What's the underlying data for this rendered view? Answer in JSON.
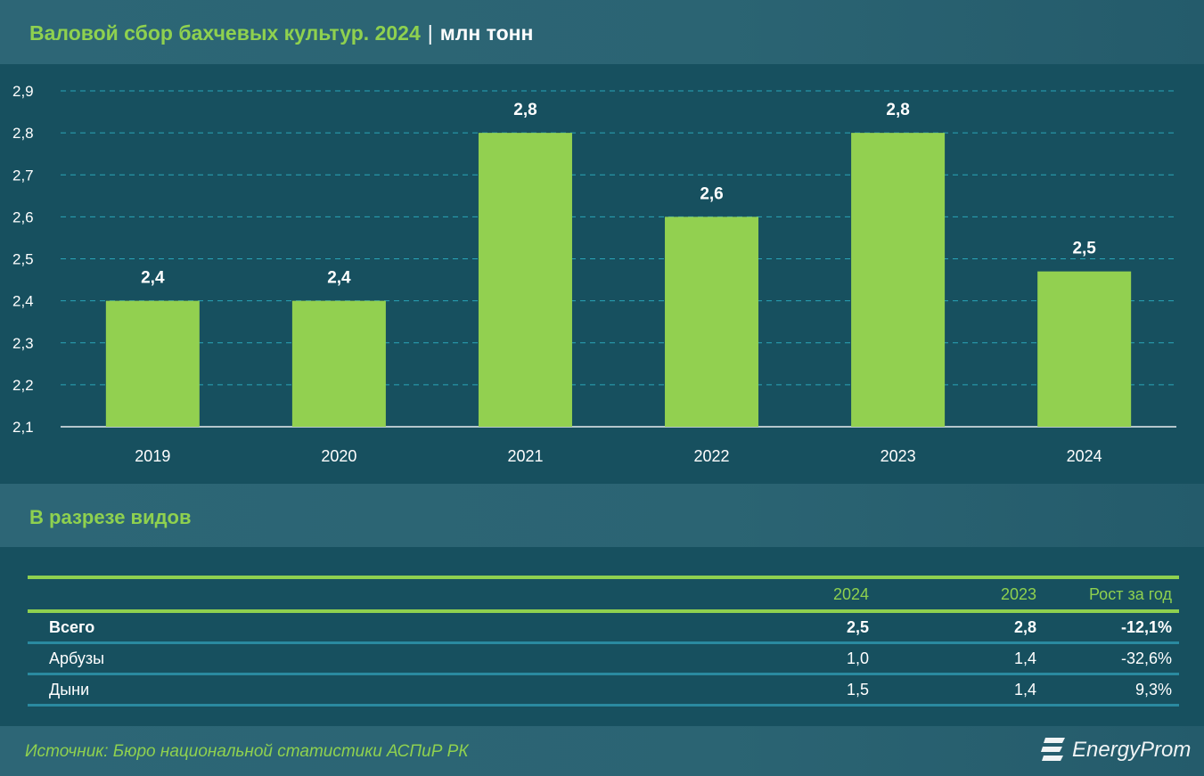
{
  "header": {
    "title": "Валовой сбор бахчевых культур. 2024",
    "separator": "|",
    "unit": "млн тонн"
  },
  "chart_data": {
    "type": "bar",
    "title": "Валовой сбор бахчевых культур. 2024",
    "ylabel": "млн тонн",
    "categories": [
      "2019",
      "2020",
      "2021",
      "2022",
      "2023",
      "2024"
    ],
    "values": [
      2.4,
      2.4,
      2.8,
      2.6,
      2.8,
      2.47
    ],
    "data_labels": [
      "2,4",
      "2,4",
      "2,8",
      "2,6",
      "2,8",
      "2,5"
    ],
    "ylim": [
      2.1,
      2.9
    ],
    "yticks": [
      "2,1",
      "2,2",
      "2,3",
      "2,4",
      "2,5",
      "2,6",
      "2,7",
      "2,8",
      "2,9"
    ],
    "grid": true,
    "legend": "none",
    "bar_color": "#92d050"
  },
  "section": {
    "title": "В разрезе видов"
  },
  "table": {
    "columns": [
      "",
      "2024",
      "2023",
      "Рост за год"
    ],
    "rows": [
      {
        "label": "Всего",
        "y2024": "2,5",
        "y2023": "2,8",
        "growth": "-12,1%"
      },
      {
        "label": "Арбузы",
        "y2024": "1,0",
        "y2023": "1,4",
        "growth": "-32,6%"
      },
      {
        "label": "Дыни",
        "y2024": "1,5",
        "y2023": "1,4",
        "growth": "9,3%"
      }
    ]
  },
  "footer": {
    "source": "Источник: Бюро национальной статистики АСПиР РК",
    "logo": "EnergyProm"
  },
  "colors": {
    "accent": "#8fd14f",
    "background": "#17505f",
    "band": "#2d6676"
  }
}
